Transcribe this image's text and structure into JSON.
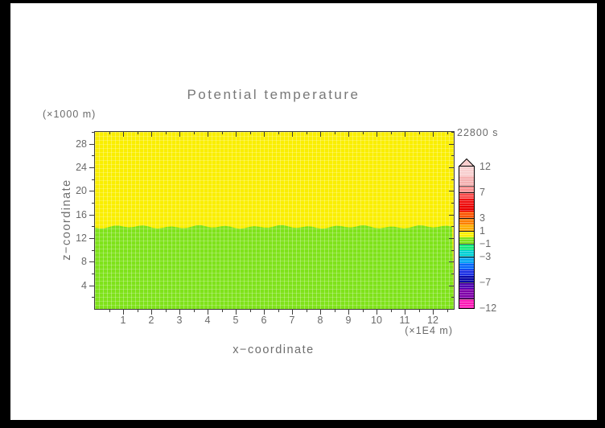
{
  "chart_data": {
    "type": "heatmap",
    "title": "Potential temperature",
    "timestamp_label": "22800 s",
    "xlabel": "x−coordinate",
    "x_unit": "(×1E4 m)",
    "ylabel": "z−coordinate",
    "y_unit": "(×1000 m)",
    "xlim": [
      0,
      12.74
    ],
    "ylim": [
      0,
      30
    ],
    "x_major_ticks": [
      1,
      2,
      3,
      4,
      5,
      6,
      7,
      8,
      9,
      10,
      11,
      12
    ],
    "x_minor_step": 0.5,
    "y_major_ticks": [
      4,
      8,
      12,
      16,
      20,
      24,
      28
    ],
    "y_minor_step": 2,
    "grid": "fine light cell mesh over filled field",
    "legend_position": "right vertical colorbar",
    "field": {
      "description": "Two nearly uniform horizontal layers separated by a slightly wavy interface",
      "upper_layer": {
        "band": "0 to 1",
        "approx_value": 0.5,
        "color": "#faee00"
      },
      "lower_layer": {
        "band": "−1 to 0",
        "approx_value": -0.5,
        "color": "#7fe21a"
      },
      "interface": {
        "z_km": 13.9,
        "amplitude_km": 0.2,
        "wave_count": 13
      }
    },
    "colorbar": {
      "labels": [
        {
          "text": "12",
          "level": 12
        },
        {
          "text": "7",
          "level": 7
        },
        {
          "text": "3",
          "level": 3
        },
        {
          "text": "1",
          "level": 1
        },
        {
          "text": "−1",
          "level": -1
        },
        {
          "text": "−3",
          "level": -3
        },
        {
          "text": "−7",
          "level": -7
        },
        {
          "text": "−12",
          "level": -12
        }
      ],
      "segments": [
        {
          "from": 10,
          "to": 12,
          "h": 12,
          "color": "#f8cfcf",
          "divider": false
        },
        {
          "from": 8,
          "to": 10,
          "h": 12,
          "color": "#f5b1b1",
          "divider": false
        },
        {
          "from": 7,
          "to": 8,
          "h": 8,
          "color": "#fb9090",
          "divider": true
        },
        {
          "from": 6,
          "to": 7,
          "h": 8,
          "color": "#fa4b4b",
          "divider": true
        },
        {
          "from": 5,
          "to": 6,
          "h": 8,
          "color": "#ef1111",
          "divider": false
        },
        {
          "from": 4,
          "to": 5,
          "h": 8,
          "color": "#e90000",
          "divider": false
        },
        {
          "from": 3,
          "to": 4,
          "h": 8,
          "color": "#fc5500",
          "divider": false
        },
        {
          "from": 2,
          "to": 3,
          "h": 8,
          "color": "#fc7f00",
          "divider": true
        },
        {
          "from": 1,
          "to": 2,
          "h": 8,
          "color": "#fdab00",
          "divider": false
        },
        {
          "from": 0,
          "to": 1,
          "h": 8,
          "color": "#f9ee00",
          "divider": true
        },
        {
          "from": -1,
          "to": 0,
          "h": 8,
          "color": "#7fe21a",
          "divider": false
        },
        {
          "from": -2,
          "to": -1,
          "h": 8,
          "color": "#12e87e",
          "divider": true
        },
        {
          "from": -3,
          "to": -2,
          "h": 8,
          "color": "#00cfd4",
          "divider": false
        },
        {
          "from": -4,
          "to": -3,
          "h": 8,
          "color": "#00a4f2",
          "divider": true
        },
        {
          "from": -5,
          "to": -4,
          "h": 8,
          "color": "#0767fa",
          "divider": false
        },
        {
          "from": -6,
          "to": -5,
          "h": 8,
          "color": "#1b2fe4",
          "divider": false
        },
        {
          "from": -7,
          "to": -6,
          "h": 8,
          "color": "#0909a8",
          "divider": false
        },
        {
          "from": -8,
          "to": -7,
          "h": 8,
          "color": "#4f00b2",
          "divider": true
        },
        {
          "from": -10,
          "to": -8,
          "h": 12,
          "color": "#7e00a8",
          "divider": false
        },
        {
          "from": -12,
          "to": -10,
          "h": 12,
          "color": "#fb1ab6",
          "divider": true
        }
      ],
      "arrow_color": "#f8cfcf"
    }
  }
}
